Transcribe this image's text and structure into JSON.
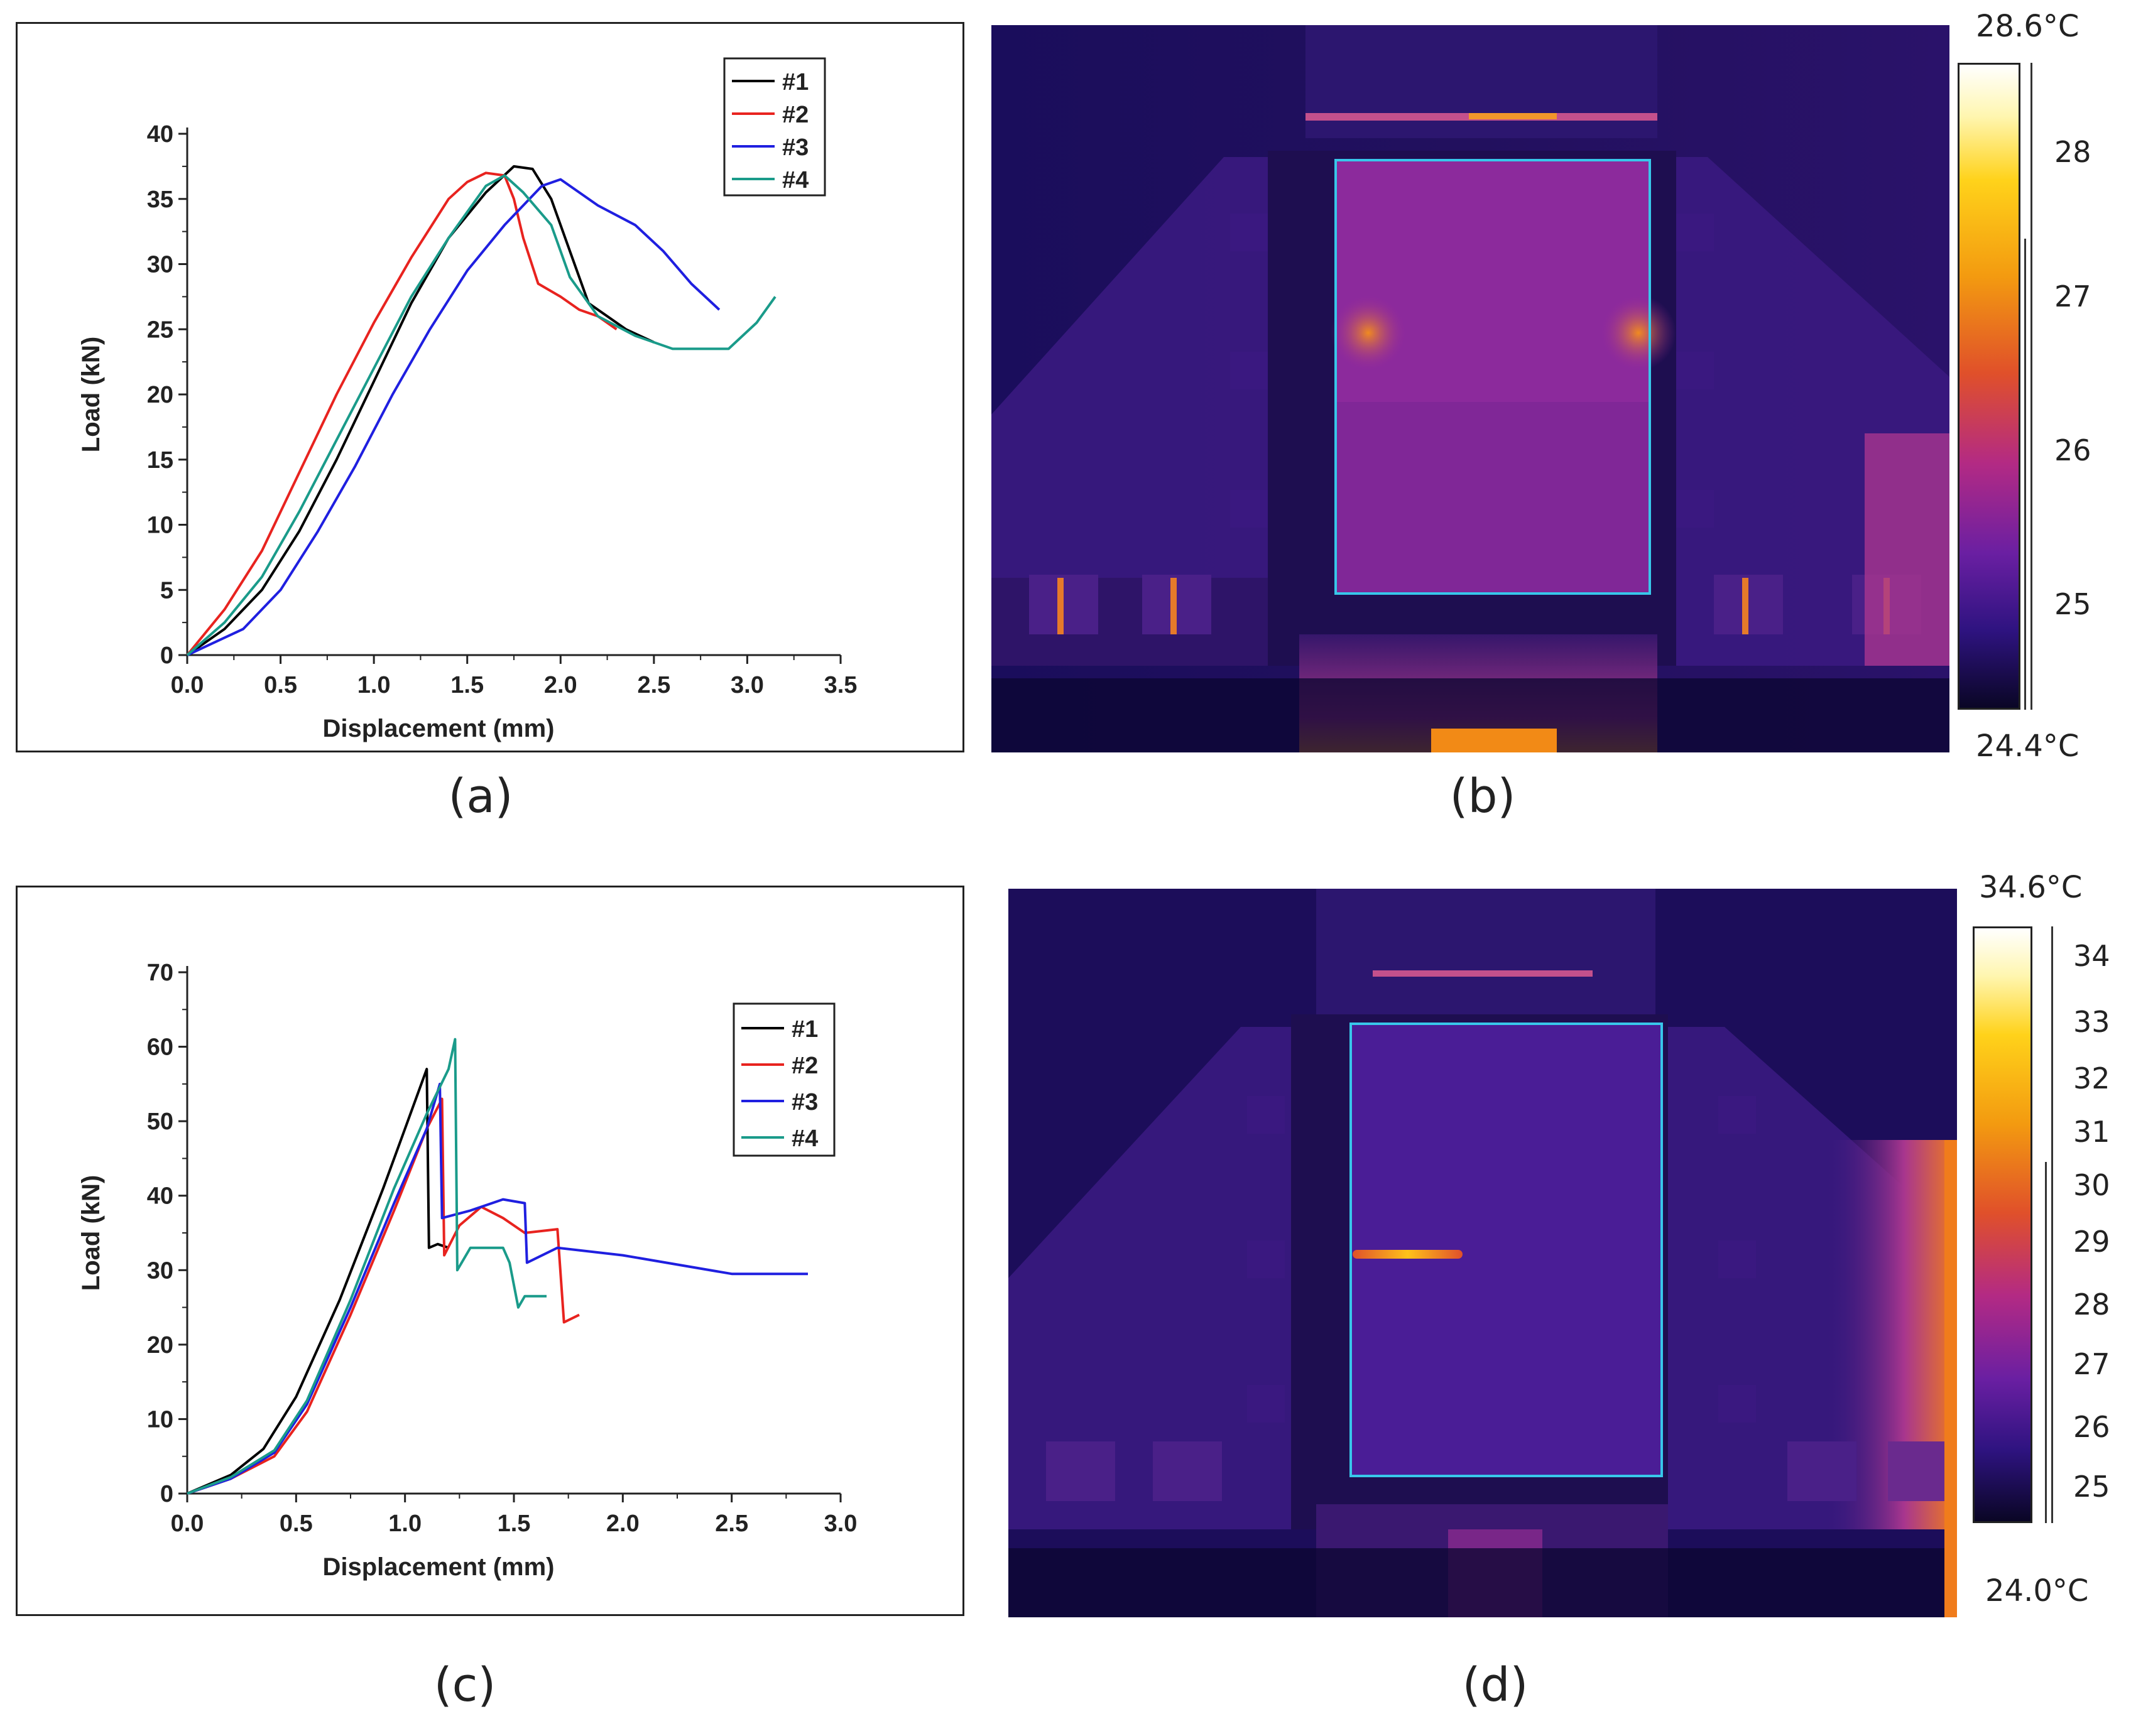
{
  "figure": {
    "captions": [
      "(a)",
      "(b)",
      "(c)",
      "(d)"
    ]
  },
  "chart_data": [
    {
      "type": "line",
      "panel": "(a)",
      "title": "",
      "xlabel": "Displacement (mm)",
      "ylabel": "Load (kN)",
      "xlim": [
        0,
        3.5
      ],
      "ylim": [
        0,
        40
      ],
      "xticks": [
        "0.0",
        "0.5",
        "1.0",
        "1.5",
        "2.0",
        "2.5",
        "3.0",
        "3.5"
      ],
      "yticks": [
        "0",
        "5",
        "10",
        "15",
        "20",
        "25",
        "30",
        "35",
        "40"
      ],
      "legend": "top-right",
      "series": [
        {
          "name": "#1",
          "color": "#000000",
          "points": [
            [
              0,
              0
            ],
            [
              0.2,
              2
            ],
            [
              0.4,
              5
            ],
            [
              0.6,
              9.5
            ],
            [
              0.8,
              15
            ],
            [
              1.0,
              21
            ],
            [
              1.2,
              27
            ],
            [
              1.4,
              32
            ],
            [
              1.6,
              35.5
            ],
            [
              1.75,
              37.5
            ],
            [
              1.85,
              37.3
            ],
            [
              1.95,
              35
            ],
            [
              2.05,
              31
            ],
            [
              2.15,
              27
            ],
            [
              2.25,
              26
            ],
            [
              2.35,
              25
            ],
            [
              2.5,
              24
            ]
          ]
        },
        {
          "name": "#2",
          "color": "#e8231f",
          "points": [
            [
              0,
              0
            ],
            [
              0.2,
              3.5
            ],
            [
              0.4,
              8
            ],
            [
              0.6,
              14
            ],
            [
              0.8,
              20
            ],
            [
              1.0,
              25.5
            ],
            [
              1.2,
              30.5
            ],
            [
              1.4,
              35
            ],
            [
              1.5,
              36.3
            ],
            [
              1.6,
              37
            ],
            [
              1.7,
              36.8
            ],
            [
              1.75,
              35
            ],
            [
              1.8,
              32
            ],
            [
              1.88,
              28.5
            ],
            [
              2.0,
              27.5
            ],
            [
              2.1,
              26.5
            ],
            [
              2.2,
              26
            ],
            [
              2.3,
              25
            ]
          ]
        },
        {
          "name": "#3",
          "color": "#1f1fe0",
          "points": [
            [
              0,
              0
            ],
            [
              0.3,
              2
            ],
            [
              0.5,
              5
            ],
            [
              0.7,
              9.5
            ],
            [
              0.9,
              14.5
            ],
            [
              1.1,
              20
            ],
            [
              1.3,
              25
            ],
            [
              1.5,
              29.5
            ],
            [
              1.7,
              33
            ],
            [
              1.9,
              36
            ],
            [
              2.0,
              36.5
            ],
            [
              2.1,
              35.5
            ],
            [
              2.2,
              34.5
            ],
            [
              2.4,
              33
            ],
            [
              2.55,
              31
            ],
            [
              2.7,
              28.5
            ],
            [
              2.85,
              26.5
            ]
          ]
        },
        {
          "name": "#4",
          "color": "#1a9b8a",
          "points": [
            [
              0,
              0
            ],
            [
              0.2,
              2.5
            ],
            [
              0.4,
              6
            ],
            [
              0.6,
              11
            ],
            [
              0.8,
              16.5
            ],
            [
              1.0,
              22
            ],
            [
              1.2,
              27.5
            ],
            [
              1.4,
              32
            ],
            [
              1.6,
              36
            ],
            [
              1.7,
              36.8
            ],
            [
              1.8,
              35.5
            ],
            [
              1.95,
              33
            ],
            [
              2.05,
              29
            ],
            [
              2.2,
              26
            ],
            [
              2.4,
              24.5
            ],
            [
              2.6,
              23.5
            ],
            [
              2.9,
              23.5
            ],
            [
              3.05,
              25.5
            ],
            [
              3.15,
              27.5
            ]
          ]
        }
      ]
    },
    {
      "type": "line",
      "panel": "(c)",
      "title": "",
      "xlabel": "Displacement (mm)",
      "ylabel": "Load (kN)",
      "xlim": [
        0,
        3.0
      ],
      "ylim": [
        0,
        70
      ],
      "xticks": [
        "0.0",
        "0.5",
        "1.0",
        "1.5",
        "2.0",
        "2.5",
        "3.0"
      ],
      "yticks": [
        "0",
        "10",
        "20",
        "30",
        "40",
        "50",
        "60",
        "70"
      ],
      "legend": "top-right",
      "series": [
        {
          "name": "#1",
          "color": "#000000",
          "points": [
            [
              0,
              0
            ],
            [
              0.2,
              2.5
            ],
            [
              0.35,
              6
            ],
            [
              0.5,
              13
            ],
            [
              0.7,
              26
            ],
            [
              0.9,
              41
            ],
            [
              1.0,
              49
            ],
            [
              1.1,
              57
            ],
            [
              1.11,
              33
            ],
            [
              1.15,
              33.5
            ],
            [
              1.2,
              33
            ]
          ]
        },
        {
          "name": "#2",
          "color": "#e8231f",
          "points": [
            [
              0,
              0
            ],
            [
              0.2,
              2
            ],
            [
              0.4,
              5
            ],
            [
              0.55,
              11
            ],
            [
              0.75,
              24
            ],
            [
              0.95,
              38
            ],
            [
              1.1,
              49
            ],
            [
              1.17,
              53
            ],
            [
              1.18,
              32
            ],
            [
              1.25,
              36
            ],
            [
              1.35,
              38.5
            ],
            [
              1.45,
              37
            ],
            [
              1.55,
              35
            ],
            [
              1.7,
              35.5
            ],
            [
              1.73,
              23
            ],
            [
              1.8,
              24
            ]
          ]
        },
        {
          "name": "#3",
          "color": "#1f1fe0",
          "points": [
            [
              0,
              0
            ],
            [
              0.2,
              2
            ],
            [
              0.4,
              5.5
            ],
            [
              0.55,
              12
            ],
            [
              0.75,
              25
            ],
            [
              0.95,
              39
            ],
            [
              1.1,
              49
            ],
            [
              1.16,
              55
            ],
            [
              1.17,
              37
            ],
            [
              1.3,
              38
            ],
            [
              1.45,
              39.5
            ],
            [
              1.55,
              39
            ],
            [
              1.56,
              31
            ],
            [
              1.7,
              33
            ],
            [
              2.0,
              32
            ],
            [
              2.5,
              29.5
            ],
            [
              2.7,
              29.5
            ],
            [
              2.85,
              29.5
            ]
          ]
        },
        {
          "name": "#4",
          "color": "#1a9b8a",
          "points": [
            [
              0,
              0
            ],
            [
              0.2,
              2.2
            ],
            [
              0.4,
              5.8
            ],
            [
              0.55,
              12.5
            ],
            [
              0.75,
              26
            ],
            [
              0.95,
              41
            ],
            [
              1.1,
              51
            ],
            [
              1.2,
              57
            ],
            [
              1.23,
              61
            ],
            [
              1.24,
              30
            ],
            [
              1.3,
              33
            ],
            [
              1.45,
              33
            ],
            [
              1.48,
              31
            ],
            [
              1.52,
              25
            ],
            [
              1.55,
              26.5
            ],
            [
              1.65,
              26.5
            ]
          ]
        }
      ]
    }
  ],
  "thermal_images": [
    {
      "panel": "(b)",
      "max_label": "28.6°C",
      "min_label": "24.4°C",
      "scale_ticks": [
        "28",
        "27",
        "26",
        "25"
      ]
    },
    {
      "panel": "(d)",
      "max_label": "34.6°C",
      "min_label": "24.0°C",
      "scale_ticks": [
        "34",
        "33",
        "32",
        "31",
        "30",
        "29",
        "28",
        "27",
        "26",
        "25"
      ]
    }
  ],
  "colors": {
    "ironbow_dark": "#0a0625",
    "ironbow_purple": "#8a1f9e",
    "ironbow_orange": "#f28a16",
    "roi_cyan": "#38c7ea"
  }
}
